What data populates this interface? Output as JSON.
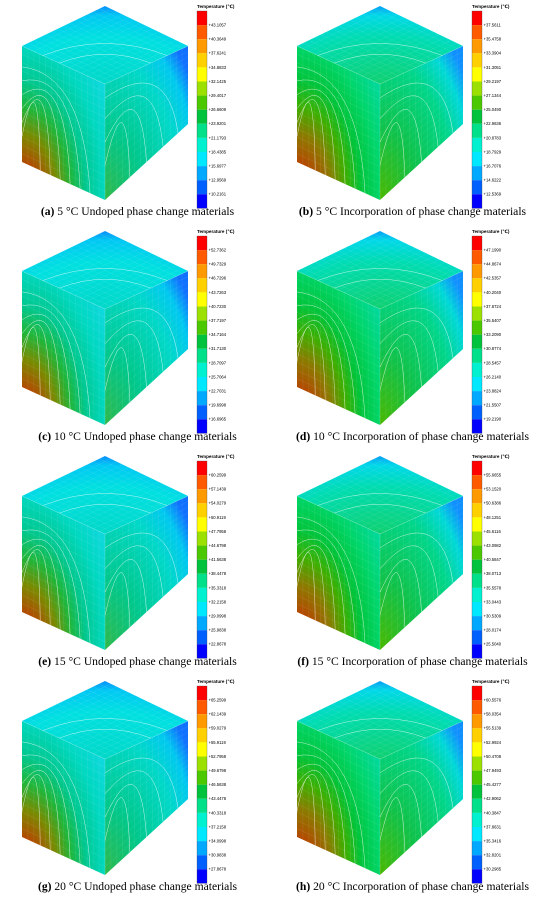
{
  "legend_title": "Temperature (℃)",
  "palette": [
    "#ff0000",
    "#ff5a00",
    "#ff9900",
    "#ffd000",
    "#ffff00",
    "#9be000",
    "#4cc800",
    "#00c23c",
    "#00e08a",
    "#00f0d0",
    "#00e8ff",
    "#00a8ff",
    "#0060ff",
    "#0000ff"
  ],
  "panels": [
    {
      "letter": "a",
      "text": " 5 °C Undoped phase change materials",
      "face": "cyan",
      "ticks": [
        "+43.1057",
        "+40.3649",
        "+37.6241",
        "+34.8833",
        "+32.1425",
        "+29.4017",
        "+26.6609",
        "+23.9201",
        "+21.1793",
        "+18.4385",
        "+15.6977",
        "+12.9569",
        "+10.2161"
      ]
    },
    {
      "letter": "b",
      "text": " 5 °C Incorporation of phase change materials",
      "face": "green",
      "ticks": [
        "+37.5611",
        "+35.4758",
        "+33.3904",
        "+31.3051",
        "+29.2197",
        "+27.1344",
        "+25.0490",
        "+22.9636",
        "+20.8783",
        "+18.7929",
        "+16.7076",
        "+14.6222",
        "+12.5369"
      ]
    },
    {
      "letter": "c",
      "text": " 10 °C Undoped phase change materials",
      "face": "cyan",
      "ticks": [
        "+52.7362",
        "+49.7329",
        "+46.7296",
        "+43.7263",
        "+40.7230",
        "+37.7197",
        "+34.7164",
        "+31.7130",
        "+28.7097",
        "+25.7064",
        "+22.7031",
        "+19.6998",
        "+16.6965"
      ]
    },
    {
      "letter": "d",
      "text": " 10 °C Incorporation of phase change materials",
      "face": "green",
      "ticks": [
        "+47.1990",
        "+44.8674",
        "+42.5357",
        "+40.2040",
        "+37.8724",
        "+35.5407",
        "+33.2090",
        "+30.8774",
        "+28.5457",
        "+26.2140",
        "+23.8824",
        "+21.5507",
        "+19.2190"
      ]
    },
    {
      "letter": "e",
      "text": " 15 °C Undoped phase change materials",
      "face": "cyan",
      "ticks": [
        "+60.2599",
        "+57.1439",
        "+54.0279",
        "+50.9119",
        "+47.7958",
        "+44.6798",
        "+41.5638",
        "+38.4478",
        "+35.3318",
        "+32.2158",
        "+29.0998",
        "+25.9838",
        "+22.8678"
      ]
    },
    {
      "letter": "f",
      "text": " 15 °C Incorporation of phase change materials",
      "face": "green",
      "ticks": [
        "+55.6655",
        "+53.1520",
        "+50.6386",
        "+48.1251",
        "+45.6116",
        "+43.0982",
        "+40.5847",
        "+38.0713",
        "+35.5578",
        "+33.0443",
        "+30.5309",
        "+28.0174",
        "+25.5040"
      ]
    },
    {
      "letter": "g",
      "text": " 20 °C Undoped phase change materials",
      "face": "cyan",
      "ticks": [
        "+65.2599",
        "+62.1439",
        "+59.0279",
        "+55.9119",
        "+52.7958",
        "+49.6798",
        "+46.5638",
        "+43.4478",
        "+40.3318",
        "+37.2158",
        "+34.0998",
        "+30.9838",
        "+27.8678"
      ]
    },
    {
      "letter": "h",
      "text": " 20 °C Incorporation of phase change materials",
      "face": "green",
      "ticks": [
        "+60.5576",
        "+58.0354",
        "+55.5139",
        "+52.9924",
        "+50.4708",
        "+47.9493",
        "+45.4277",
        "+42.9062",
        "+40.3847",
        "+37.8631",
        "+35.3416",
        "+32.8201",
        "+30.2985"
      ]
    }
  ]
}
